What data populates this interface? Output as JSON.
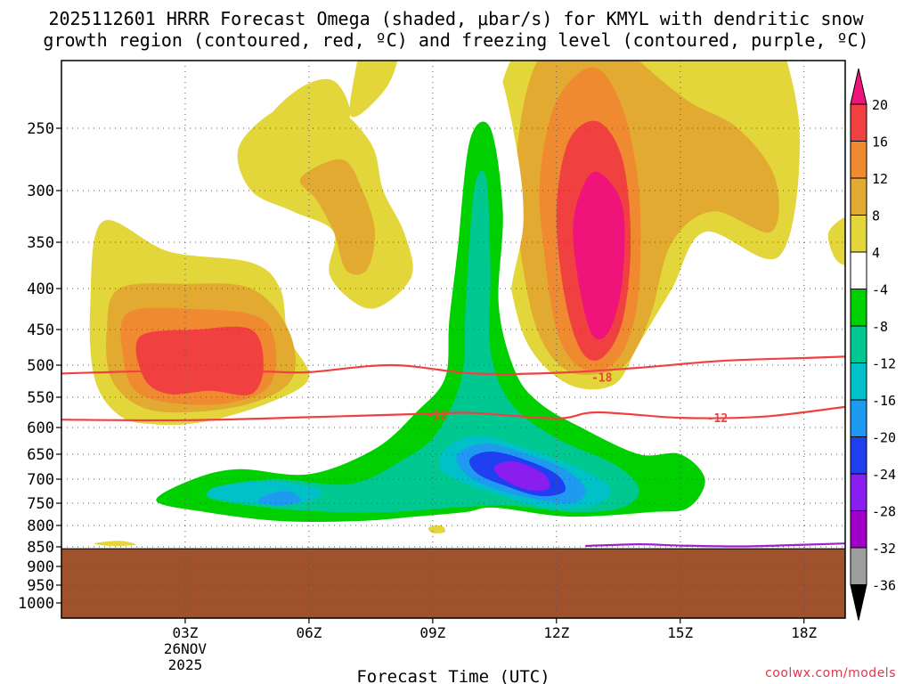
{
  "chart_data": {
    "type": "contour-timeheight",
    "title_line1": "2025112601 HRRR Forecast Omega (shaded, μbar/s) for KMYL with dendritic snow",
    "title_line2": "growth region (contoured, red, ºC) and freezing level (contoured, purple, ºC)",
    "xlabel": "Forecast Time (UTC)",
    "x_ticks": [
      {
        "hour": 3,
        "label": "03Z"
      },
      {
        "hour": 6,
        "label": "06Z"
      },
      {
        "hour": 9,
        "label": "09Z"
      },
      {
        "hour": 12,
        "label": "12Z"
      },
      {
        "hour": 15,
        "label": "15Z"
      },
      {
        "hour": 18,
        "label": "18Z"
      }
    ],
    "x_sublabel": [
      "26NOV",
      "2025"
    ],
    "x_range_hours": [
      0,
      19
    ],
    "y_ticks": [
      250,
      300,
      350,
      400,
      450,
      500,
      550,
      600,
      650,
      700,
      750,
      800,
      850,
      900,
      950,
      1000
    ],
    "y_range_hpa": [
      200,
      1050
    ],
    "surface_pressure_hpa": 855,
    "colorbar": {
      "levels": [
        20,
        16,
        12,
        8,
        4,
        -4,
        -8,
        -12,
        -16,
        -20,
        -24,
        -28,
        -32,
        -36
      ],
      "colors": [
        "#f0137a",
        "#f04040",
        "#f08a30",
        "#e2aa30",
        "#e2d63a",
        "#ffffff",
        "#00d000",
        "#00c890",
        "#00c0c8",
        "#1e9af0",
        "#1e40f0",
        "#8a1ef0",
        "#a000c8",
        "#9e9e9e",
        "#000000"
      ]
    },
    "omega_regions": [
      {
        "name": "upward-left-core",
        "max": 16,
        "center": {
          "hour": 3.5,
          "hpa": 480
        }
      },
      {
        "name": "upward-right-core",
        "max": 20,
        "center": {
          "hour": 13,
          "hpa": 370
        }
      },
      {
        "name": "upward-upper-left",
        "max": 8,
        "center": {
          "hour": 7,
          "hpa": 300
        }
      },
      {
        "name": "downward-column",
        "min": -16,
        "center": {
          "hour": 10,
          "hpa": 300
        }
      },
      {
        "name": "downward-lower-core",
        "min": -28,
        "center": {
          "hour": 11.5,
          "hpa": 690
        }
      },
      {
        "name": "downward-lower-left",
        "min": -20,
        "center": {
          "hour": 5,
          "hpa": 730
        }
      }
    ],
    "contours": [
      {
        "name": "dgz-top",
        "value": -18,
        "label": "-18",
        "color": "#f04040",
        "points": [
          [
            0,
            513
          ],
          [
            3,
            508
          ],
          [
            5,
            510
          ],
          [
            6,
            511
          ],
          [
            8,
            500
          ],
          [
            10,
            513
          ],
          [
            12,
            512
          ],
          [
            14,
            504
          ],
          [
            16,
            494
          ],
          [
            18,
            490
          ],
          [
            19,
            488
          ]
        ]
      },
      {
        "name": "dgz-bottom",
        "value": -12,
        "label": "-12",
        "color": "#f04040",
        "points": [
          [
            0,
            587
          ],
          [
            3,
            588
          ],
          [
            6,
            583
          ],
          [
            9,
            577
          ],
          [
            10,
            576
          ],
          [
            12,
            585
          ],
          [
            13,
            575
          ],
          [
            15,
            584
          ],
          [
            17,
            582
          ],
          [
            19,
            566
          ]
        ]
      },
      {
        "name": "freezing-level",
        "value": 0,
        "label": "",
        "color": "#9a22c8",
        "points": [
          [
            12.7,
            848
          ],
          [
            14,
            844
          ],
          [
            15,
            847
          ],
          [
            16.5,
            849
          ],
          [
            18,
            845
          ],
          [
            19,
            842
          ]
        ]
      }
    ],
    "contour_labels": [
      {
        "text": "-18",
        "hour": 3.0,
        "hpa": 512
      },
      {
        "text": "-12",
        "hour": 9.1,
        "hpa": 580
      },
      {
        "text": "-12",
        "hour": 15.9,
        "hpa": 585
      },
      {
        "text": "-18",
        "hour": 13.1,
        "hpa": 520
      }
    ]
  },
  "watermark": "coolwx.com/models"
}
